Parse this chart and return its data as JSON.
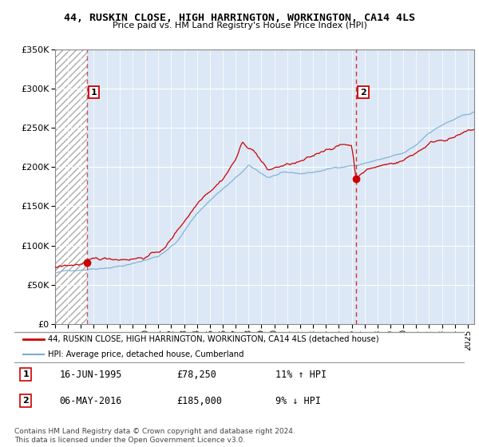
{
  "title1": "44, RUSKIN CLOSE, HIGH HARRINGTON, WORKINGTON, CA14 4LS",
  "title2": "Price paid vs. HM Land Registry's House Price Index (HPI)",
  "legend_line1": "44, RUSKIN CLOSE, HIGH HARRINGTON, WORKINGTON, CA14 4LS (detached house)",
  "legend_line2": "HPI: Average price, detached house, Cumberland",
  "ann1_date": "16-JUN-1995",
  "ann1_price": "£78,250",
  "ann1_hpi": "11% ↑ HPI",
  "ann2_date": "06-MAY-2016",
  "ann2_price": "£185,000",
  "ann2_hpi": "9% ↓ HPI",
  "footnote": "Contains HM Land Registry data © Crown copyright and database right 2024.\nThis data is licensed under the Open Government Licence v3.0.",
  "ylim": [
    0,
    350000
  ],
  "yticks": [
    0,
    50000,
    100000,
    150000,
    200000,
    250000,
    300000,
    350000
  ],
  "sale1_x": 1995.46,
  "sale1_y": 78250,
  "sale2_x": 2016.35,
  "sale2_y": 185000,
  "plot_bg": "#dce8f5",
  "hatch_bg": "#ffffff",
  "sale_color": "#cc0000",
  "hpi_color": "#7aadd4",
  "vline1_color": "#cc5555",
  "vline2_color": "#cc3333",
  "xmin": 1993.0,
  "xmax": 2025.5,
  "seed": 42
}
